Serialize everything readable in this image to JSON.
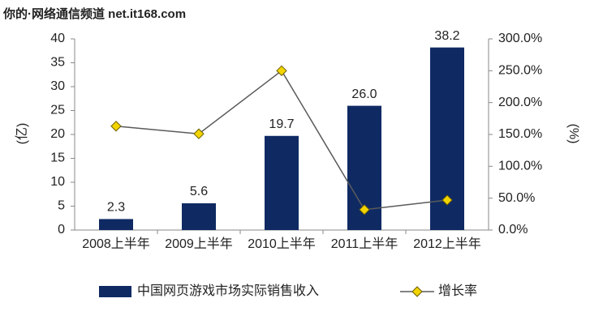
{
  "chart_data": {
    "type": "bar",
    "watermark": "你的·网络通信频道 net.it168.com",
    "y_label": "(亿)",
    "y2_label": "(%)",
    "categories": [
      "2008上半年",
      "2009上半年",
      "2010上半年",
      "2011上半年",
      "2012上半年"
    ],
    "series": [
      {
        "name": "中国网页游戏市场实际销售收入",
        "type": "bar",
        "color": "#0f2a63",
        "values": [
          2.3,
          5.6,
          19.7,
          26.0,
          38.2
        ],
        "value_labels": [
          "2.3",
          "5.6",
          "19.7",
          "26.0",
          "38.2"
        ]
      },
      {
        "name": "增长率",
        "type": "line",
        "axis": "y2",
        "color": "#5a5a5a",
        "marker_color": "#f2d400",
        "values": [
          163,
          151,
          250,
          32,
          47
        ]
      }
    ],
    "ylim": [
      0,
      40
    ],
    "yticks": [
      0,
      5,
      10,
      15,
      20,
      25,
      30,
      35,
      40
    ],
    "y2lim": [
      0,
      300
    ],
    "y2ticks": [
      {
        "value": 0,
        "label": "0.0%"
      },
      {
        "value": 50,
        "label": "50.0%"
      },
      {
        "value": 100,
        "label": "100.0%"
      },
      {
        "value": 150,
        "label": "150.0%"
      },
      {
        "value": 200,
        "label": "200.0%"
      },
      {
        "value": 250,
        "label": "250.0%"
      },
      {
        "value": 300,
        "label": "300.0%"
      }
    ],
    "legend": "bottom"
  }
}
